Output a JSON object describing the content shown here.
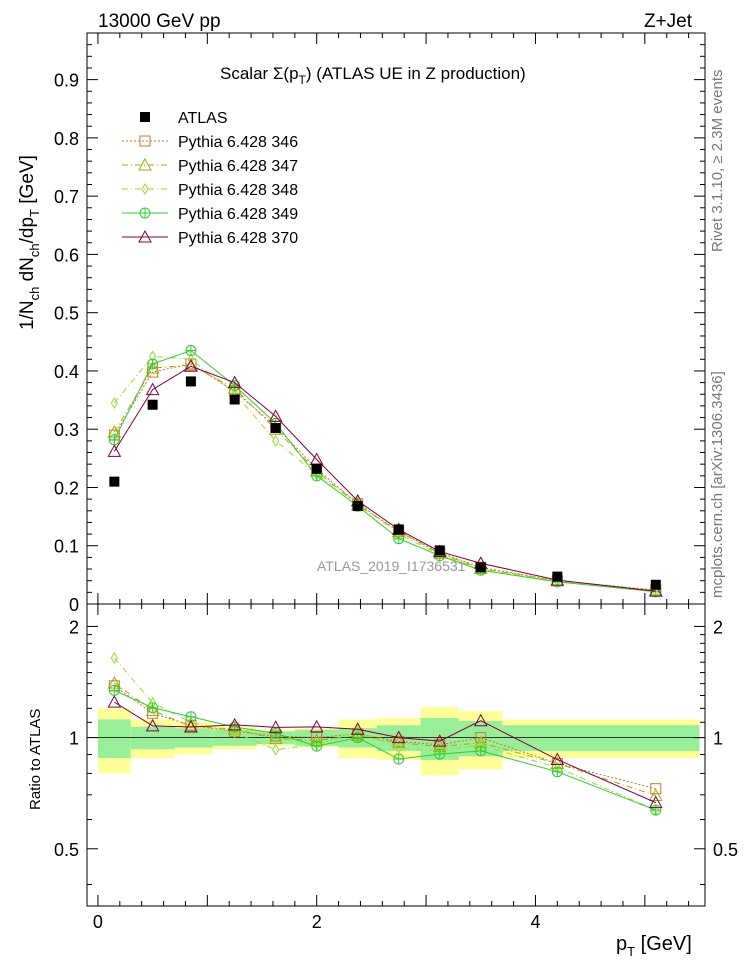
{
  "header": {
    "left": "13000 GeV pp",
    "right": "Z+Jet"
  },
  "side": {
    "rivet": "Rivet 3.1.10, ≥ 2.3M events",
    "mcplots": "mcplots.cern.ch [arXiv:1306.3436]"
  },
  "watermark": "ATLAS_2019_I1736531",
  "chart_data": {
    "type": "line",
    "title": "Scalar Σ(p_T) (ATLAS UE in Z production)",
    "ylabel": "1/N_ch dN_ch/dp_T [GeV]",
    "xlabel": "p_T [GeV]",
    "ratio_ylabel": "Ratio to ATLAS",
    "xlim": [
      -0.1,
      5.55
    ],
    "ylim": [
      0,
      0.98
    ],
    "ratio_ylim": [
      0.35,
      2.3
    ],
    "x_ticks": [
      0,
      2,
      4
    ],
    "y_ticks": [
      0,
      0.1,
      0.2,
      0.3,
      0.4,
      0.5,
      0.6,
      0.7,
      0.8,
      0.9
    ],
    "ratio_ticks": [
      0.5,
      1,
      2
    ],
    "x": [
      0.15,
      0.5,
      0.85,
      1.25,
      1.625,
      2.0,
      2.375,
      2.75,
      3.125,
      3.5,
      4.2,
      5.1
    ],
    "data": {
      "name": "ATLAS",
      "values": [
        0.21,
        0.342,
        0.382,
        0.351,
        0.302,
        0.232,
        0.168,
        0.128,
        0.092,
        0.063,
        0.047,
        0.033
      ]
    },
    "bands": {
      "x_edges": [
        0.0,
        0.3,
        0.7,
        1.05,
        1.45,
        1.8,
        2.2,
        2.55,
        2.95,
        3.3,
        3.7,
        4.7,
        5.5
      ],
      "yellow_half": [
        0.2,
        0.12,
        0.1,
        0.07,
        0.05,
        0.06,
        0.12,
        0.13,
        0.21,
        0.18,
        0.12,
        0.12
      ],
      "green_half": [
        0.12,
        0.07,
        0.06,
        0.05,
        0.04,
        0.05,
        0.06,
        0.08,
        0.13,
        0.11,
        0.08,
        0.08
      ]
    },
    "series": [
      {
        "name": "Pythia 6.428 346",
        "color": "#c87533",
        "dash": "2,2",
        "marker": "square",
        "values": [
          0.29,
          0.398,
          0.412,
          0.365,
          0.305,
          0.232,
          0.172,
          0.125,
          0.088,
          0.063,
          0.04,
          0.024
        ]
      },
      {
        "name": "Pythia 6.428 347",
        "color": "#aaaa00",
        "dash": "6,3,1,3",
        "marker": "triangle",
        "values": [
          0.295,
          0.405,
          0.41,
          0.37,
          0.3,
          0.228,
          0.17,
          0.124,
          0.087,
          0.061,
          0.04,
          0.023
        ]
      },
      {
        "name": "Pythia 6.428 348",
        "color": "#9adb34",
        "dash": "6,3,1,3",
        "marker": "diamond",
        "values": [
          0.345,
          0.425,
          0.42,
          0.362,
          0.28,
          0.222,
          0.175,
          0.12,
          0.085,
          0.06,
          0.039,
          0.021
        ]
      },
      {
        "name": "Pythia 6.428 349",
        "color": "#33cc33",
        "dash": "",
        "marker": "cross",
        "values": [
          0.282,
          0.412,
          0.435,
          0.375,
          0.31,
          0.22,
          0.168,
          0.112,
          0.083,
          0.058,
          0.038,
          0.021
        ]
      },
      {
        "name": "Pythia 6.428 370",
        "color": "#800040",
        "dash": "",
        "marker": "triangle",
        "values": [
          0.262,
          0.368,
          0.408,
          0.38,
          0.322,
          0.248,
          0.177,
          0.128,
          0.09,
          0.07,
          0.041,
          0.022
        ]
      }
    ],
    "legend_position": "top-left",
    "grid": false
  }
}
